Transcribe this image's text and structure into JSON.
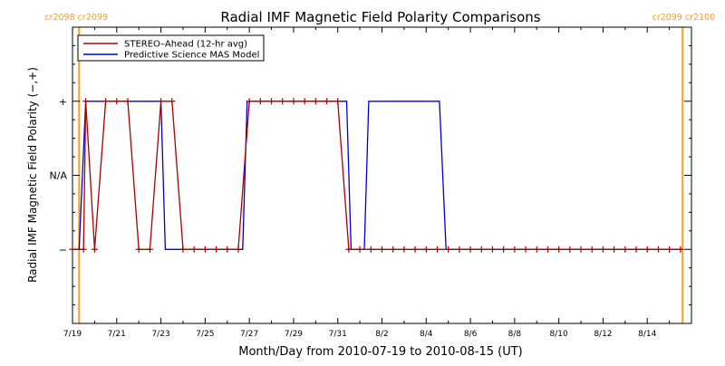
{
  "chart_data": {
    "type": "line",
    "title": "Radial IMF Magnetic Field Polarity Comparisons",
    "xlabel": "Month/Day from 2010-07-19 to 2010-08-15 (UT)",
    "ylabel": "Radial IMF Magnetic Field Polarity (−,+)",
    "x_unit": "days",
    "xlim": [
      "2010-07-19",
      "2010-08-16"
    ],
    "x_tick_labels": [
      "7/19",
      "7/21",
      "7/23",
      "7/25",
      "7/27",
      "7/29",
      "7/31",
      "8/2",
      "8/4",
      "8/6",
      "8/8",
      "8/10",
      "8/12",
      "8/14"
    ],
    "y_ticks": [
      {
        "value": 1,
        "label": "+"
      },
      {
        "value": 0,
        "label": "N/A"
      },
      {
        "value": -1,
        "label": "−"
      }
    ],
    "ylim": [
      -2,
      2
    ],
    "legend_position": "top-left",
    "carrington_markers": [
      {
        "x": 0.3,
        "label": "cr2098 cr2099",
        "side": "left"
      },
      {
        "x": 27.6,
        "label": "cr2099 cr2100",
        "side": "right"
      }
    ],
    "colors": {
      "stereo": "#aa0000",
      "model": "#0000cc",
      "carrington": "#f4a020",
      "axis": "#000000"
    },
    "series": [
      {
        "name": "STEREO–Ahead (12-hr avg)",
        "color": "#aa0000",
        "points": [
          [
            0.0,
            -1
          ],
          [
            0.5,
            -1
          ],
          [
            0.6,
            1
          ],
          [
            1.0,
            -1
          ],
          [
            1.5,
            1
          ],
          [
            2.0,
            1
          ],
          [
            2.5,
            1
          ],
          [
            3.0,
            -1
          ],
          [
            3.5,
            -1
          ],
          [
            4.0,
            1
          ],
          [
            4.5,
            1
          ],
          [
            5.0,
            -1
          ],
          [
            5.5,
            -1
          ],
          [
            6.0,
            -1
          ],
          [
            6.5,
            -1
          ],
          [
            7.0,
            -1
          ],
          [
            7.5,
            -1
          ],
          [
            8.0,
            1
          ],
          [
            8.5,
            1
          ],
          [
            9.0,
            1
          ],
          [
            9.5,
            1
          ],
          [
            10.0,
            1
          ],
          [
            10.5,
            1
          ],
          [
            11.0,
            1
          ],
          [
            11.5,
            1
          ],
          [
            12.0,
            1
          ],
          [
            12.5,
            -1
          ],
          [
            13.0,
            -1
          ],
          [
            13.5,
            -1
          ],
          [
            14.0,
            -1
          ],
          [
            14.5,
            -1
          ],
          [
            15.0,
            -1
          ],
          [
            15.5,
            -1
          ],
          [
            16.0,
            -1
          ],
          [
            16.5,
            -1
          ],
          [
            17.0,
            -1
          ],
          [
            17.5,
            -1
          ],
          [
            18.0,
            -1
          ],
          [
            18.5,
            -1
          ],
          [
            19.0,
            -1
          ],
          [
            19.5,
            -1
          ],
          [
            20.0,
            -1
          ],
          [
            20.5,
            -1
          ],
          [
            21.0,
            -1
          ],
          [
            21.5,
            -1
          ],
          [
            22.0,
            -1
          ],
          [
            22.5,
            -1
          ],
          [
            23.0,
            -1
          ],
          [
            23.5,
            -1
          ],
          [
            24.0,
            -1
          ],
          [
            24.5,
            -1
          ],
          [
            25.0,
            -1
          ],
          [
            25.5,
            -1
          ],
          [
            26.0,
            -1
          ],
          [
            26.5,
            -1
          ],
          [
            27.0,
            -1
          ],
          [
            27.5,
            -1
          ]
        ]
      },
      {
        "name": "Predictive Science MAS Model",
        "color": "#0000cc",
        "points": [
          [
            0.0,
            -1
          ],
          [
            0.3,
            -1
          ],
          [
            0.6,
            1
          ],
          [
            1.0,
            1
          ],
          [
            2.0,
            1
          ],
          [
            3.0,
            1
          ],
          [
            4.0,
            1
          ],
          [
            4.2,
            -1
          ],
          [
            5.0,
            -1
          ],
          [
            6.0,
            -1
          ],
          [
            7.0,
            -1
          ],
          [
            7.7,
            -1
          ],
          [
            7.9,
            1
          ],
          [
            8.5,
            1
          ],
          [
            9.5,
            1
          ],
          [
            10.5,
            1
          ],
          [
            11.5,
            1
          ],
          [
            12.4,
            1
          ],
          [
            12.6,
            -1
          ],
          [
            13.2,
            -1
          ],
          [
            13.4,
            1
          ],
          [
            14.5,
            1
          ],
          [
            15.5,
            1
          ],
          [
            16.6,
            1
          ],
          [
            16.9,
            -1
          ],
          [
            18.0,
            -1
          ],
          [
            20.0,
            -1
          ],
          [
            22.0,
            -1
          ],
          [
            24.0,
            -1
          ],
          [
            26.0,
            -1
          ],
          [
            27.6,
            -1
          ]
        ]
      }
    ]
  }
}
